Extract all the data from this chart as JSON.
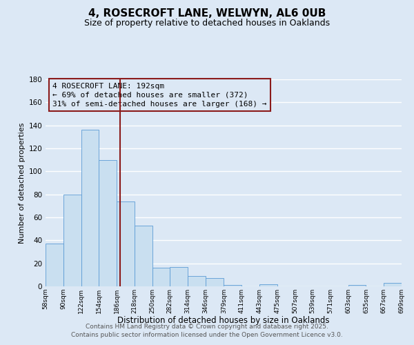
{
  "title": "4, ROSECROFT LANE, WELWYN, AL6 0UB",
  "subtitle": "Size of property relative to detached houses in Oaklands",
  "xlabel": "Distribution of detached houses by size in Oaklands",
  "ylabel": "Number of detached properties",
  "bar_lefts": [
    58,
    90,
    122,
    154,
    186,
    218,
    250,
    282,
    314,
    346,
    379,
    411,
    443,
    475,
    507,
    539,
    571,
    603,
    635,
    667
  ],
  "bar_widths": [
    32,
    32,
    32,
    32,
    32,
    32,
    32,
    32,
    32,
    33,
    32,
    32,
    32,
    32,
    32,
    32,
    32,
    32,
    32,
    32
  ],
  "bar_heights": [
    37,
    80,
    136,
    110,
    74,
    53,
    16,
    17,
    9,
    7,
    1,
    0,
    2,
    0,
    0,
    0,
    0,
    1,
    0,
    3
  ],
  "bar_facecolor": "#c9dff0",
  "bar_edgecolor": "#5b9bd5",
  "bg_color": "#dce8f5",
  "grid_color": "#ffffff",
  "vline_x": 192,
  "vline_color": "#8b1a1a",
  "annotation_text_line1": "4 ROSECROFT LANE: 192sqm",
  "annotation_text_line2": "← 69% of detached houses are smaller (372)",
  "annotation_text_line3": "31% of semi-detached houses are larger (168) →",
  "annotation_box_edgecolor": "#8b1a1a",
  "annotation_fontsize": 8,
  "ylim": [
    0,
    180
  ],
  "yticks": [
    0,
    20,
    40,
    60,
    80,
    100,
    120,
    140,
    160,
    180
  ],
  "xtick_positions": [
    58,
    90,
    122,
    154,
    186,
    218,
    250,
    282,
    314,
    346,
    379,
    411,
    443,
    475,
    507,
    539,
    571,
    603,
    635,
    667,
    699
  ],
  "tick_labels": [
    "58sqm",
    "90sqm",
    "122sqm",
    "154sqm",
    "186sqm",
    "218sqm",
    "250sqm",
    "282sqm",
    "314sqm",
    "346sqm",
    "379sqm",
    "411sqm",
    "443sqm",
    "475sqm",
    "507sqm",
    "539sqm",
    "571sqm",
    "603sqm",
    "635sqm",
    "667sqm",
    "699sqm"
  ],
  "footer1": "Contains HM Land Registry data © Crown copyright and database right 2025.",
  "footer2": "Contains public sector information licensed under the Open Government Licence v3.0.",
  "title_fontsize": 11,
  "subtitle_fontsize": 9,
  "xlabel_fontsize": 8.5,
  "ylabel_fontsize": 8,
  "footer_fontsize": 6.5,
  "tick_fontsize": 6.5,
  "ytick_fontsize": 7.5
}
